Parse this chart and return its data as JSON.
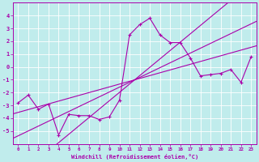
{
  "xlabel": "Windchill (Refroidissement éolien,°C)",
  "bg_color": "#c0ecec",
  "line_color": "#aa00aa",
  "grid_color": "#ffffff",
  "x_data": [
    0,
    1,
    2,
    3,
    4,
    5,
    6,
    7,
    8,
    9,
    10,
    11,
    12,
    13,
    14,
    15,
    16,
    17,
    18,
    19,
    20,
    21,
    22,
    23
  ],
  "y_main": [
    -2.8,
    -2.2,
    -3.3,
    -2.9,
    -5.3,
    -3.7,
    -3.8,
    -3.8,
    -4.1,
    -3.9,
    -2.6,
    2.5,
    3.3,
    3.8,
    2.5,
    1.9,
    1.9,
    0.7,
    -0.7,
    -0.6,
    -0.5,
    -0.2,
    -1.2,
    0.8
  ],
  "ylim": [
    -6,
    5
  ],
  "xlim": [
    -0.5,
    23.5
  ],
  "yticks": [
    -5,
    -4,
    -3,
    -2,
    -1,
    0,
    1,
    2,
    3,
    4
  ],
  "xticks": [
    0,
    1,
    2,
    3,
    4,
    5,
    6,
    7,
    8,
    9,
    10,
    11,
    12,
    13,
    14,
    15,
    16,
    17,
    18,
    19,
    20,
    21,
    22,
    23
  ],
  "reg1": [
    -2.5,
    1.0
  ],
  "reg2": [
    -3.0,
    -0.3
  ],
  "reg3": [
    -3.1,
    -0.7
  ]
}
